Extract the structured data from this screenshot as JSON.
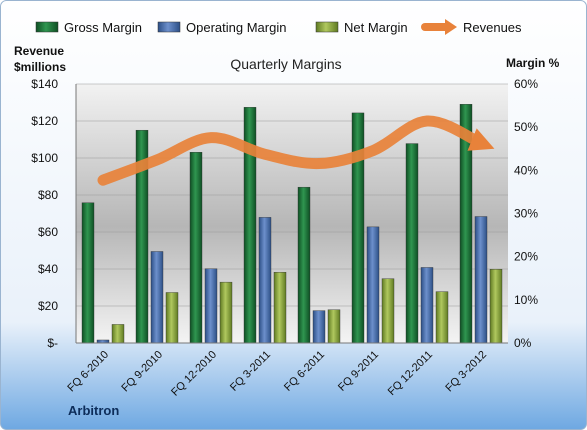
{
  "chart_data": {
    "type": "bar",
    "title": "Quarterly Margins",
    "left_axis_title_line1": "Revenue",
    "left_axis_title_line2": "$millions",
    "right_axis_title": "Margin %",
    "company": "Arbitron",
    "categories": [
      "FQ 6-2010",
      "FQ 9-2010",
      "FQ 12-2010",
      "FQ 3-2011",
      "FQ 6-2011",
      "FQ 9-2011",
      "FQ 12-2011",
      "FQ 3-2012"
    ],
    "series": [
      {
        "name": "Gross Margin",
        "axis": "right",
        "color": "#1f7a3c",
        "values": [
          32.5,
          49.3,
          44.2,
          54.6,
          36.1,
          53.3,
          46.2,
          55.3
        ]
      },
      {
        "name": "Operating Margin",
        "axis": "right",
        "color": "#4a6fb0",
        "values": [
          0.7,
          21.2,
          17.2,
          29.1,
          7.5,
          26.9,
          17.5,
          29.3
        ]
      },
      {
        "name": "Net Margin",
        "axis": "right",
        "color": "#8ca83c",
        "values": [
          4.3,
          11.7,
          14.1,
          16.4,
          7.7,
          14.9,
          11.9,
          17.1
        ]
      },
      {
        "name": "Revenues",
        "axis": "left",
        "type": "line",
        "color": "#e8823a",
        "values": [
          88,
          99,
          111,
          102,
          97,
          104,
          120,
          108
        ]
      }
    ],
    "left_axis": {
      "min": 0,
      "max": 140,
      "ticks": [
        "$-",
        "$20",
        "$40",
        "$60",
        "$80",
        "$100",
        "$120",
        "$140"
      ]
    },
    "right_axis": {
      "min": 0,
      "max": 60,
      "ticks": [
        "0%",
        "10%",
        "20%",
        "30%",
        "40%",
        "50%",
        "60%"
      ]
    },
    "legend_position": "top",
    "grid": true
  }
}
